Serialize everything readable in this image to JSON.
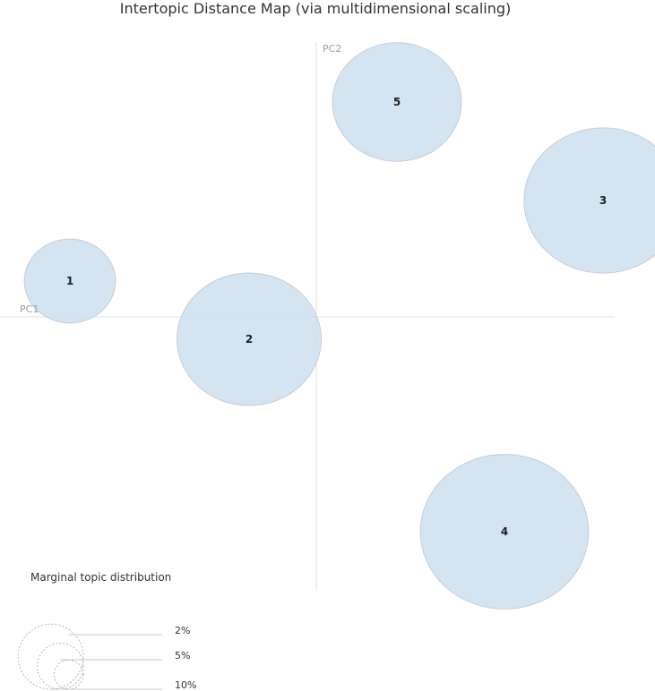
{
  "chart_data": {
    "type": "scatter",
    "title": "Intertopic Distance Map (via multidimensional scaling)",
    "xlabel": "PC1",
    "ylabel": "PC2",
    "grid": false,
    "topics": [
      {
        "label": "1",
        "x": -2.75,
        "y": 0.4,
        "size": 2.0
      },
      {
        "label": "2",
        "x": -0.75,
        "y": -0.25,
        "size": 5.0
      },
      {
        "label": "3",
        "x": 3.2,
        "y": 1.3,
        "size": 6.0
      },
      {
        "label": "4",
        "x": 2.1,
        "y": -2.4,
        "size": 6.8
      },
      {
        "label": "5",
        "x": 0.9,
        "y": 2.4,
        "size": 4.0
      }
    ],
    "legend": {
      "title": "Marginal topic distribution",
      "entries": [
        {
          "label": "2%",
          "value": 2
        },
        {
          "label": "5%",
          "value": 5
        },
        {
          "label": "10%",
          "value": 10
        }
      ]
    }
  },
  "colors": {
    "bubble_fill": "#cfe1f0",
    "bubble_stroke": "#c4cfd9",
    "axis_line": "#e1e1e1",
    "legend_stroke": "#b5b5b5"
  }
}
